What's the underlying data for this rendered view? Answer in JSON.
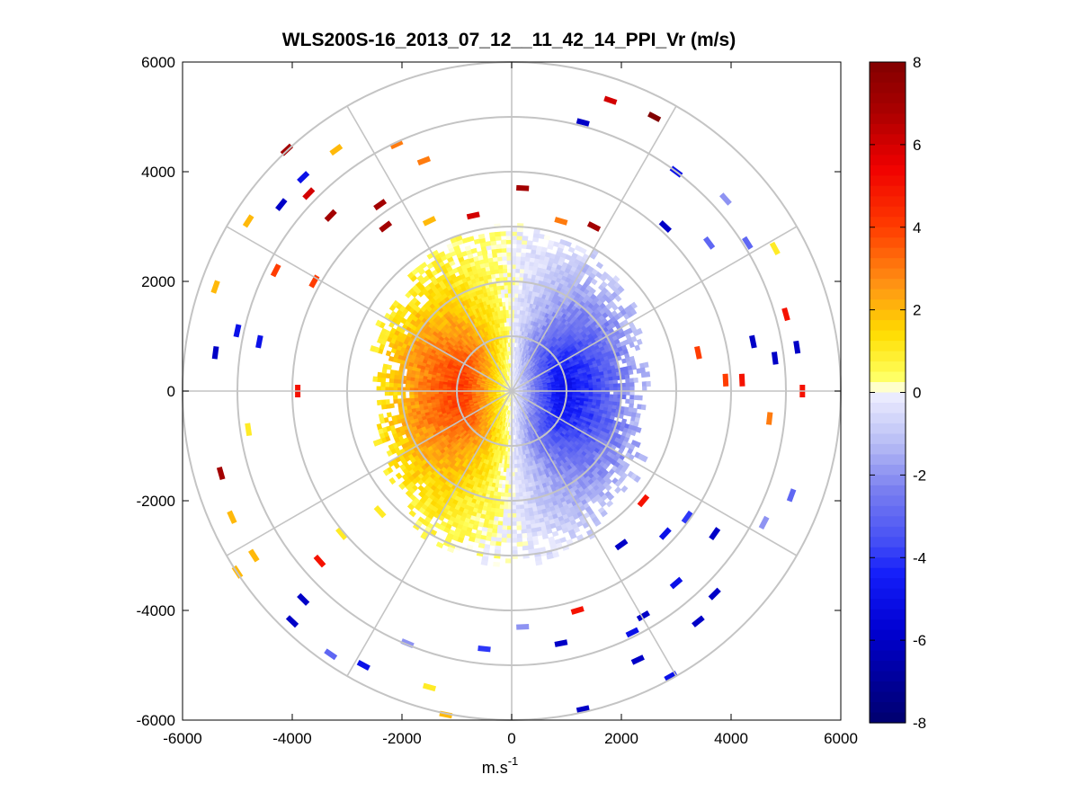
{
  "chart_data": {
    "type": "heatmap",
    "subtype": "polar-ppi-scan",
    "title": "WLS200S-16_2013_07_12__11_42_14_PPI_Vr (m/s)",
    "xlabel_base": "m.s",
    "xlabel_exp": "-1",
    "xlim": [
      -6000,
      6000
    ],
    "ylim": [
      -6000,
      6000
    ],
    "xticks": [
      -6000,
      -4000,
      -2000,
      0,
      2000,
      4000,
      6000
    ],
    "yticks": [
      6000,
      4000,
      2000,
      0,
      -2000,
      -4000,
      -6000
    ],
    "xtick_labels": [
      "-6000",
      "-4000",
      "-2000",
      "0",
      "2000",
      "4000",
      "6000"
    ],
    "ytick_labels": [
      "6000",
      "4000",
      "2000",
      "0",
      "-2000",
      "-4000",
      "-6000"
    ],
    "polar_rings": [
      1000,
      2000,
      3000,
      4000,
      5000,
      6000
    ],
    "polar_spokes_deg": [
      0,
      30,
      60,
      90,
      120,
      150,
      180,
      210,
      240,
      270,
      300,
      330
    ],
    "colorbar": {
      "min": -8,
      "max": 8,
      "ticks": [
        8,
        6,
        4,
        2,
        0,
        -2,
        -4,
        -6,
        -8
      ],
      "tick_labels": [
        "8",
        "6",
        "4",
        "2",
        "0",
        "-2",
        "-4",
        "-6",
        "-8"
      ],
      "colormap": "white-centered blue-to-red diverging"
    },
    "field_summary": {
      "positive_sector_center_deg": 270,
      "negative_sector_center_deg": 90,
      "peak_positive_ms": 5,
      "peak_negative_ms": -6,
      "dense_data_radius_m": 2900
    },
    "scatter_returns": [
      {
        "x": -4100,
        "y": 4400,
        "v": 7
      },
      {
        "x": -3700,
        "y": 3600,
        "v": 6
      },
      {
        "x": -3300,
        "y": 3200,
        "v": 7
      },
      {
        "x": -2400,
        "y": 3400,
        "v": 7
      },
      {
        "x": -2300,
        "y": 3000,
        "v": 7
      },
      {
        "x": -1600,
        "y": 4200,
        "v": 3
      },
      {
        "x": -2100,
        "y": 4500,
        "v": 3
      },
      {
        "x": -3200,
        "y": 4400,
        "v": 2
      },
      {
        "x": -4800,
        "y": 3100,
        "v": 2
      },
      {
        "x": -5400,
        "y": 1900,
        "v": 2
      },
      {
        "x": -4300,
        "y": 2200,
        "v": 4
      },
      {
        "x": -3600,
        "y": 2000,
        "v": 4
      },
      {
        "x": -3800,
        "y": 3900,
        "v": -5
      },
      {
        "x": -4200,
        "y": 3400,
        "v": -6
      },
      {
        "x": -5400,
        "y": 700,
        "v": -6
      },
      {
        "x": -5000,
        "y": 1100,
        "v": -5
      },
      {
        "x": -4600,
        "y": 900,
        "v": -5
      },
      {
        "x": -3900,
        "y": 0,
        "v": 5
      },
      {
        "x": -4800,
        "y": -700,
        "v": 1
      },
      {
        "x": -5300,
        "y": -1500,
        "v": 7
      },
      {
        "x": -5100,
        "y": -2300,
        "v": 2
      },
      {
        "x": -4700,
        "y": -3000,
        "v": 2
      },
      {
        "x": -5000,
        "y": -3300,
        "v": 2
      },
      {
        "x": -3800,
        "y": -3800,
        "v": -6
      },
      {
        "x": -3500,
        "y": -3100,
        "v": 5
      },
      {
        "x": -2400,
        "y": -2200,
        "v": 1
      },
      {
        "x": -3100,
        "y": -2600,
        "v": 1
      },
      {
        "x": -1500,
        "y": 3100,
        "v": 2
      },
      {
        "x": -700,
        "y": 3200,
        "v": 6
      },
      {
        "x": 200,
        "y": 3700,
        "v": 7
      },
      {
        "x": 1500,
        "y": 3000,
        "v": 7
      },
      {
        "x": 900,
        "y": 3100,
        "v": 3
      },
      {
        "x": 1800,
        "y": 5300,
        "v": 6
      },
      {
        "x": 2600,
        "y": 5000,
        "v": 8
      },
      {
        "x": 1300,
        "y": 4900,
        "v": -6
      },
      {
        "x": 2800,
        "y": 3000,
        "v": -6
      },
      {
        "x": 3000,
        "y": 4000,
        "v": -5
      },
      {
        "x": 3600,
        "y": 2700,
        "v": -3
      },
      {
        "x": 3900,
        "y": 3500,
        "v": -2
      },
      {
        "x": 4300,
        "y": 2700,
        "v": -3
      },
      {
        "x": 4800,
        "y": 2600,
        "v": 1
      },
      {
        "x": 5000,
        "y": 1400,
        "v": 5
      },
      {
        "x": 4400,
        "y": 900,
        "v": -6
      },
      {
        "x": 4800,
        "y": 600,
        "v": -6
      },
      {
        "x": 5200,
        "y": 800,
        "v": -6
      },
      {
        "x": 3400,
        "y": 700,
        "v": 4
      },
      {
        "x": 3900,
        "y": 200,
        "v": 4
      },
      {
        "x": 4200,
        "y": 200,
        "v": 5
      },
      {
        "x": 5300,
        "y": 0,
        "v": 5
      },
      {
        "x": 4700,
        "y": -500,
        "v": 3
      },
      {
        "x": 5100,
        "y": -1900,
        "v": -3
      },
      {
        "x": 4600,
        "y": -2400,
        "v": -2
      },
      {
        "x": 3700,
        "y": -2600,
        "v": -6
      },
      {
        "x": 3200,
        "y": -2300,
        "v": -4
      },
      {
        "x": 2400,
        "y": -2000,
        "v": 5
      },
      {
        "x": 2800,
        "y": -2600,
        "v": -5
      },
      {
        "x": 2000,
        "y": -2800,
        "v": -6
      },
      {
        "x": 3000,
        "y": -3500,
        "v": -5
      },
      {
        "x": 3700,
        "y": -3700,
        "v": -6
      },
      {
        "x": 3400,
        "y": -4200,
        "v": -6
      },
      {
        "x": 2400,
        "y": -4100,
        "v": -6
      },
      {
        "x": 1200,
        "y": -4000,
        "v": 5
      },
      {
        "x": 2200,
        "y": -4400,
        "v": -5
      },
      {
        "x": 900,
        "y": -4600,
        "v": -6
      },
      {
        "x": 2300,
        "y": -4900,
        "v": -6
      },
      {
        "x": 2900,
        "y": -5200,
        "v": -5
      },
      {
        "x": 1300,
        "y": -5800,
        "v": -6
      },
      {
        "x": 200,
        "y": -4300,
        "v": -2
      },
      {
        "x": -500,
        "y": -4700,
        "v": -4
      },
      {
        "x": -1500,
        "y": -5400,
        "v": 1
      },
      {
        "x": -1200,
        "y": -5900,
        "v": 2
      },
      {
        "x": -2700,
        "y": -5000,
        "v": -5
      },
      {
        "x": -1900,
        "y": -4600,
        "v": -2
      },
      {
        "x": -4000,
        "y": -4200,
        "v": -6
      },
      {
        "x": -3300,
        "y": -4800,
        "v": -3
      }
    ]
  }
}
